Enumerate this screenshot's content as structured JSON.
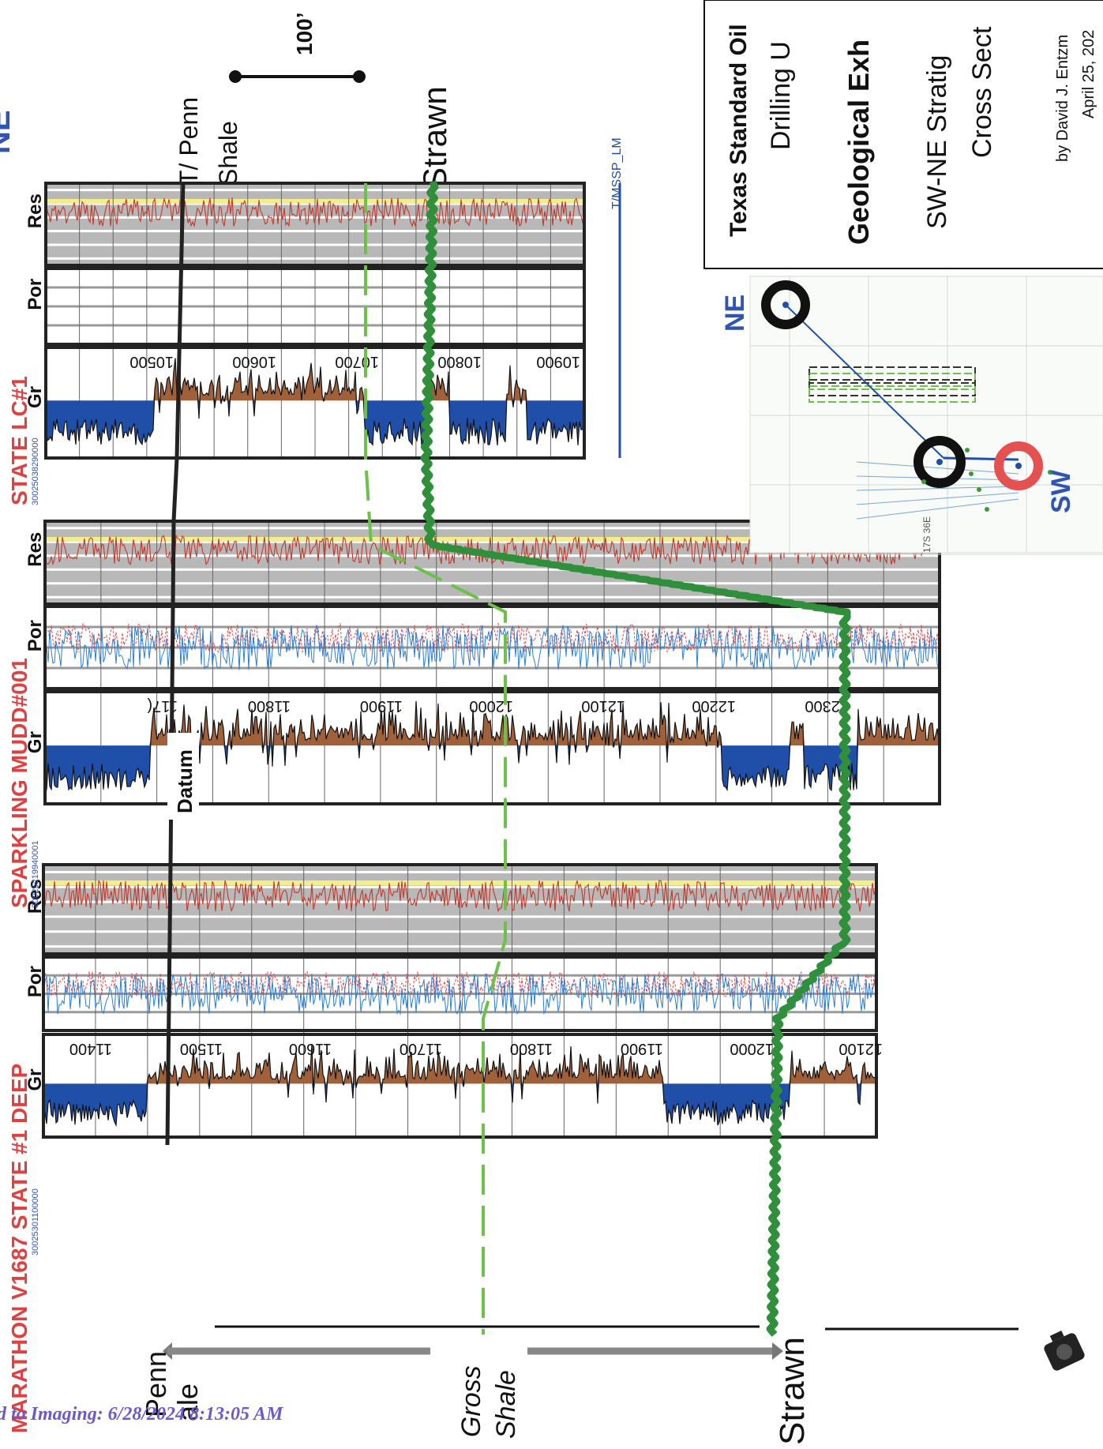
{
  "header": {
    "compass_ne": "NE"
  },
  "scale": {
    "label": "100’"
  },
  "tops": {
    "t_penn_shale_line1": "T/ Penn",
    "t_penn_shale_line2": "Shale",
    "strawn": "Strawn",
    "tmssp": "T/MSSP_LM",
    "datum": "Datum"
  },
  "title_block": {
    "company_line1": "Texas Standard Oil",
    "company_line2": "Drilling U",
    "exhibit_line": "Geological Exh",
    "section_line1": "SW-NE Stratig",
    "section_line2": "Cross Sect",
    "author_line": "by David J. Entzm",
    "date_line": "April 25, 202"
  },
  "map_inset": {
    "ne_label": "NE",
    "sw_label": "SW",
    "township_label": "17S 36E"
  },
  "wells": [
    {
      "name": "STATE LC#1",
      "api": "30025038290000",
      "tracks": {
        "gr": "Gr",
        "por": "Por",
        "res": "Res"
      },
      "depths": [
        "10500",
        "10600",
        "10700",
        "10800",
        "10900"
      ]
    },
    {
      "name": "SPARKLING MUDD#001",
      "api": "30025219940001",
      "tracks": {
        "gr": "Gr",
        "por": "Por",
        "res": "Res"
      },
      "depths": [
        "117(",
        "11800",
        "11900",
        "12000",
        "12100",
        "12200",
        "12300"
      ]
    },
    {
      "name": "MARATHON V1687 STATE #1 DEEP",
      "api": "30025301100000",
      "tracks": {
        "gr": "Gr",
        "por": "Por",
        "res": "Res"
      },
      "depths": [
        "11400",
        "11500",
        "11600",
        "11700",
        "11800",
        "11900",
        "12000",
        "12100"
      ]
    }
  ],
  "bottom_labels": {
    "penn_line1": "Penn",
    "penn_line2": "ale",
    "gross_line1": "Gross",
    "gross_line2": "Shale",
    "strawn": "Strawn"
  },
  "footer": {
    "stamp": "d to Imaging: 6/28/2024 8:13:05 AM"
  },
  "colors": {
    "gr_sand": "#1f4fa8",
    "gr_shale": "#a0603a",
    "res_curve": "#c0392b",
    "por_blue": "#2a7fd4",
    "por_red": "#e0454a",
    "strawn_green": "#2f8f3a",
    "gross_green": "#6dc04a",
    "title_red": "#e04040",
    "api_blue": "#3355bb",
    "compass_blue": "#2f55b0",
    "footer_purple": "#6a5acd"
  }
}
